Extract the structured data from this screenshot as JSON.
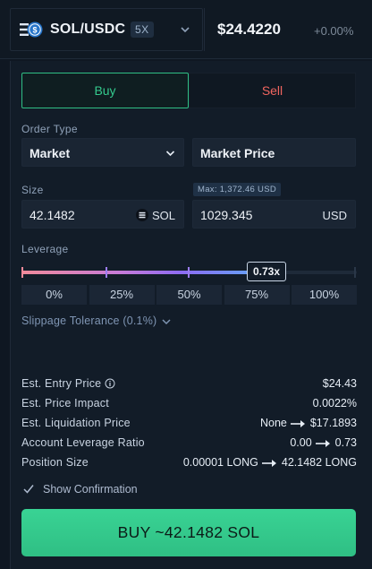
{
  "header": {
    "market": "SOL/USDC",
    "leverage_badge": "5X",
    "mark_price": "$24.4220",
    "price_change": "+0.00%"
  },
  "order": {
    "tabs": {
      "buy": "Buy",
      "sell": "Sell"
    },
    "order_type_label": "Order Type",
    "order_type_value": "Market",
    "market_price_field": "Market Price",
    "size_label": "Size",
    "max_badge": "Max: 1,372.46 USD",
    "size_amount": "42.1482",
    "size_unit": "SOL",
    "size_usd": "1029.345",
    "usd_unit": "USD",
    "leverage_label": "Leverage",
    "leverage_value": "0.73x",
    "leverage_fraction": 0.73,
    "percent_buttons": [
      "0%",
      "25%",
      "50%",
      "75%",
      "100%"
    ],
    "slippage": "Slippage Tolerance (0.1%)"
  },
  "stats": {
    "entry_price_label": "Est. Entry Price",
    "entry_price_value": "$24.43",
    "price_impact_label": "Est. Price Impact",
    "price_impact_value": "0.0022%",
    "liq_price_label": "Est. Liquidation Price",
    "liq_from": "None",
    "liq_to": "$17.1893",
    "acct_lev_label": "Account Leverage Ratio",
    "acct_lev_from": "0.00",
    "acct_lev_to": "0.73",
    "pos_size_label": "Position Size",
    "pos_from": "0.00001 LONG",
    "pos_to": "42.1482 LONG"
  },
  "confirm_label": "Show Confirmation",
  "submit_label": "BUY ~42.1482 SOL",
  "colors": {
    "buy": "#34c98d",
    "sell": "#f0655f",
    "panel": "#121c28"
  },
  "icons": [
    "sol-logo-icon",
    "chevron-down-icon",
    "info-icon",
    "arrow-right-icon",
    "check-icon"
  ]
}
